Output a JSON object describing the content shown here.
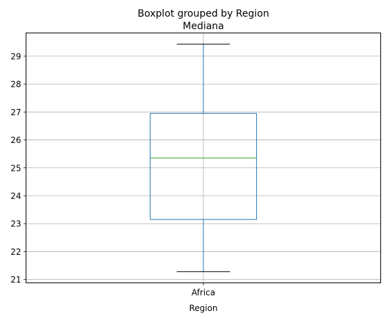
{
  "chart_data": {
    "type": "box",
    "suptitle": "Boxplot grouped by Region",
    "title": "Mediana",
    "xlabel": "Region",
    "ylabel": "",
    "categories": [
      "Africa"
    ],
    "boxes": [
      {
        "category": "Africa",
        "whisker_low": 21.28,
        "q1": 23.15,
        "median": 25.35,
        "q3": 26.95,
        "whisker_high": 29.43
      }
    ],
    "ylim": [
      20.88,
      29.83
    ],
    "yticks": [
      21,
      22,
      23,
      24,
      25,
      26,
      27,
      28,
      29
    ],
    "grid": true,
    "colors": {
      "box": "#1f77b4",
      "whisker": "#1f77b4",
      "median": "#2ca02c",
      "cap": "#000000",
      "grid": "#b0b0b0"
    }
  }
}
